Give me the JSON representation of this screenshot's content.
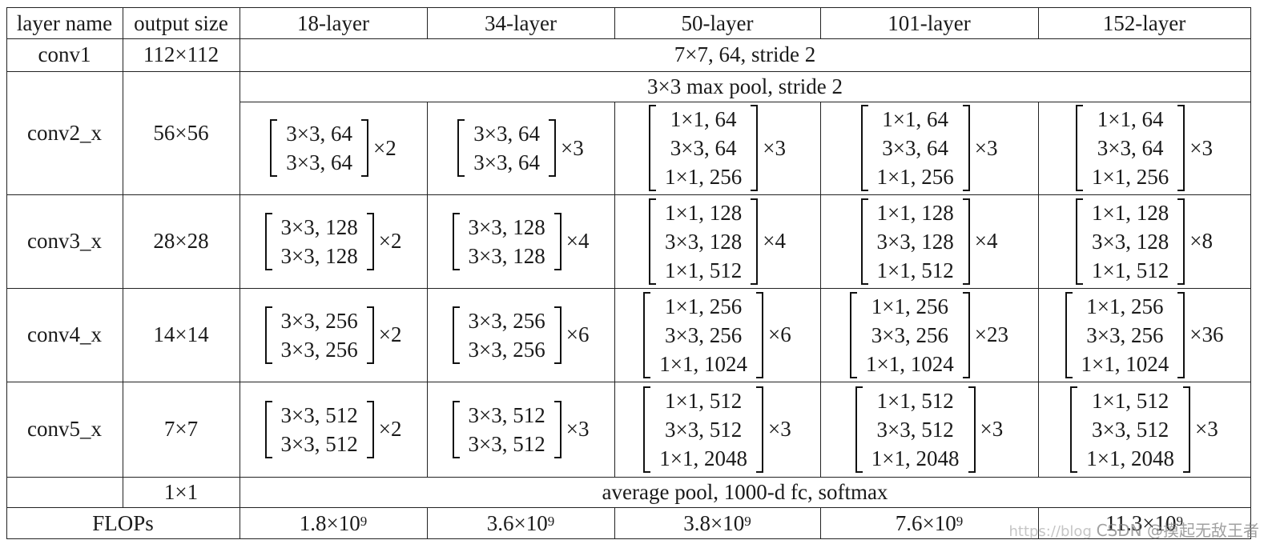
{
  "table": {
    "headers": [
      "layer name",
      "output size",
      "18-layer",
      "34-layer",
      "50-layer",
      "101-layer",
      "152-layer"
    ],
    "conv1": {
      "name": "conv1",
      "size": "112×112",
      "spec": "7×7, 64, stride 2"
    },
    "maxpool": {
      "spec": "3×3 max pool, stride 2"
    },
    "stages": [
      {
        "name": "conv2_x",
        "size": "56×56",
        "blocks": [
          {
            "lines": [
              "3×3, 64",
              "3×3, 64"
            ],
            "mult": "×2"
          },
          {
            "lines": [
              "3×3, 64",
              "3×3, 64"
            ],
            "mult": "×3"
          },
          {
            "lines": [
              "1×1, 64",
              "3×3, 64",
              "1×1, 256"
            ],
            "mult": "×3"
          },
          {
            "lines": [
              "1×1, 64",
              "3×3, 64",
              "1×1, 256"
            ],
            "mult": "×3"
          },
          {
            "lines": [
              "1×1, 64",
              "3×3, 64",
              "1×1, 256"
            ],
            "mult": "×3"
          }
        ]
      },
      {
        "name": "conv3_x",
        "size": "28×28",
        "blocks": [
          {
            "lines": [
              "3×3, 128",
              "3×3, 128"
            ],
            "mult": "×2"
          },
          {
            "lines": [
              "3×3, 128",
              "3×3, 128"
            ],
            "mult": "×4"
          },
          {
            "lines": [
              "1×1, 128",
              "3×3, 128",
              "1×1, 512"
            ],
            "mult": "×4"
          },
          {
            "lines": [
              "1×1, 128",
              "3×3, 128",
              "1×1, 512"
            ],
            "mult": "×4"
          },
          {
            "lines": [
              "1×1, 128",
              "3×3, 128",
              "1×1, 512"
            ],
            "mult": "×8"
          }
        ]
      },
      {
        "name": "conv4_x",
        "size": "14×14",
        "blocks": [
          {
            "lines": [
              "3×3, 256",
              "3×3, 256"
            ],
            "mult": "×2"
          },
          {
            "lines": [
              "3×3, 256",
              "3×3, 256"
            ],
            "mult": "×6"
          },
          {
            "lines": [
              "1×1, 256",
              "3×3, 256",
              "1×1, 1024"
            ],
            "mult": "×6"
          },
          {
            "lines": [
              "1×1, 256",
              "3×3, 256",
              "1×1, 1024"
            ],
            "mult": "×23"
          },
          {
            "lines": [
              "1×1, 256",
              "3×3, 256",
              "1×1, 1024"
            ],
            "mult": "×36"
          }
        ]
      },
      {
        "name": "conv5_x",
        "size": "7×7",
        "blocks": [
          {
            "lines": [
              "3×3, 512",
              "3×3, 512"
            ],
            "mult": "×2"
          },
          {
            "lines": [
              "3×3, 512",
              "3×3, 512"
            ],
            "mult": "×3"
          },
          {
            "lines": [
              "1×1, 512",
              "3×3, 512",
              "1×1, 2048"
            ],
            "mult": "×3"
          },
          {
            "lines": [
              "1×1, 512",
              "3×3, 512",
              "1×1, 2048"
            ],
            "mult": "×3"
          },
          {
            "lines": [
              "1×1, 512",
              "3×3, 512",
              "1×1, 2048"
            ],
            "mult": "×3"
          }
        ]
      }
    ],
    "pool": {
      "name": "",
      "size": "1×1",
      "spec": "average pool, 1000-d fc, softmax"
    },
    "flops": {
      "label": "FLOPs",
      "values": [
        {
          "mantissa": "1.8×10",
          "exp": "9"
        },
        {
          "mantissa": "3.6×10",
          "exp": "9"
        },
        {
          "mantissa": "3.8×10",
          "exp": "9"
        },
        {
          "mantissa": "7.6×10",
          "exp": "9"
        },
        {
          "mantissa": "11.3×10",
          "exp": "9"
        }
      ]
    }
  },
  "watermark": {
    "url": "https://blog",
    "label": "CSDN @摸起无敌王者"
  }
}
